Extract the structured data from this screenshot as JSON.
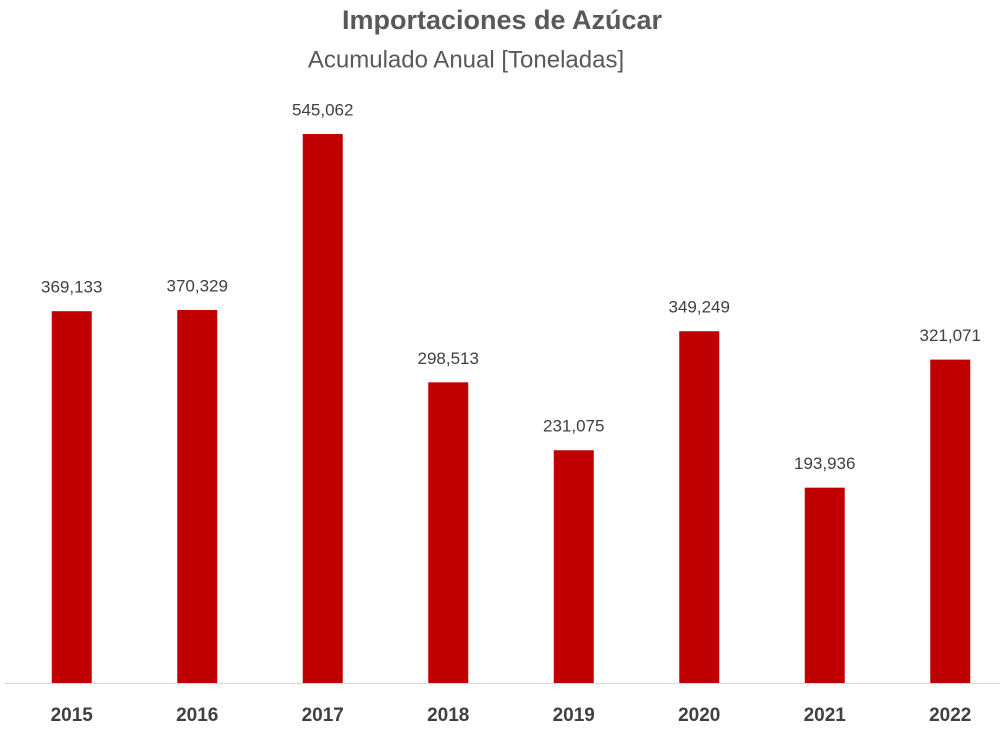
{
  "chart_data": {
    "type": "bar",
    "title": "Importaciones de Azúcar",
    "subtitle": "Acumulado Anual [Toneladas]",
    "categories": [
      "2015",
      "2016",
      "2017",
      "2018",
      "2019",
      "2020",
      "2021",
      "2022"
    ],
    "values": [
      369133,
      370329,
      545062,
      298513,
      231075,
      349249,
      193936,
      321071
    ],
    "value_labels": [
      "369,133",
      "370,329",
      "545,062",
      "298,513",
      "231,075",
      "349,249",
      "193,936",
      "321,071"
    ],
    "color": "#c00000"
  }
}
